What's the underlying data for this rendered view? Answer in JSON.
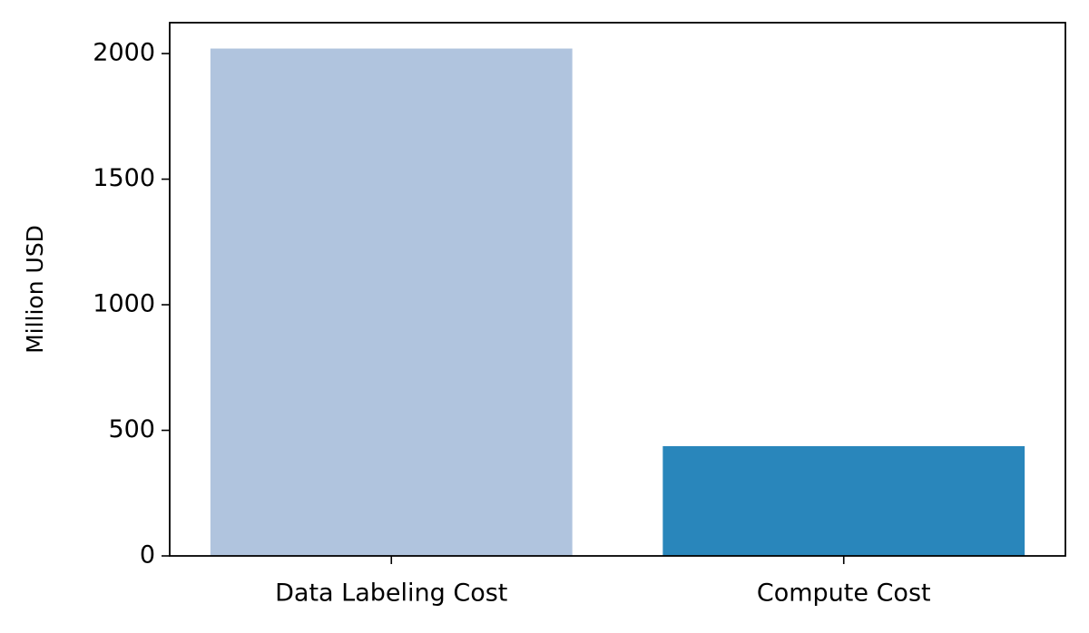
{
  "chart_data": {
    "type": "bar",
    "y_label": "Million USD",
    "categories": [
      "Data Labeling Cost",
      "Compute Cost"
    ],
    "values": [
      2020,
      437
    ],
    "colors": [
      "#b0c4de",
      "#2986bb"
    ],
    "ylim": [
      0,
      2123
    ],
    "yticks": [
      0,
      500,
      1000,
      1500,
      2000
    ],
    "grid": false
  }
}
